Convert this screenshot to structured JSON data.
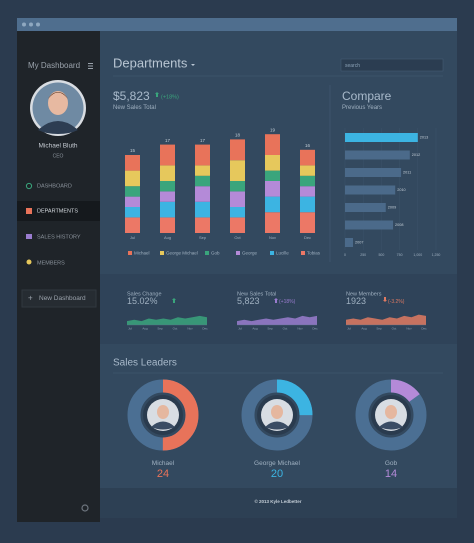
{
  "sidebar": {
    "title": "My Dashboard",
    "user": {
      "name": "Michael Bluth",
      "role": "CEO"
    },
    "menu": [
      "DASHBOARD",
      "DEPARTMENTS",
      "SALES HISTORY",
      "MEMBERS"
    ],
    "new_dashboard": "New Dashboard"
  },
  "header": {
    "title": "Departments",
    "search_placeholder": "search"
  },
  "sales": {
    "amount": "$5,823",
    "change": "(+18%)",
    "label": "New Sales Total"
  },
  "department_chart": {
    "type": "bar",
    "stacked": true,
    "categories": [
      "Jul",
      "Aug",
      "Sep",
      "Oct",
      "Nov",
      "Dec"
    ],
    "totals": [
      15,
      17,
      17,
      18,
      19,
      16
    ],
    "ylim": [
      0,
      20
    ],
    "series": [
      {
        "name": "Michael",
        "color": "#e8735a",
        "values": [
          3,
          4,
          4,
          4,
          4,
          3
        ]
      },
      {
        "name": "George Michael",
        "color": "#e6c85c",
        "values": [
          3,
          3,
          2,
          4,
          3,
          2
        ]
      },
      {
        "name": "Gob",
        "color": "#3aa57c",
        "values": [
          2,
          2,
          2,
          2,
          2,
          2
        ]
      },
      {
        "name": "George",
        "color": "#b48ad8",
        "values": [
          2,
          2,
          3,
          3,
          3,
          2
        ]
      },
      {
        "name": "Lucille",
        "color": "#3cb4e2",
        "values": [
          2,
          3,
          3,
          2,
          3,
          3
        ]
      },
      {
        "name": "Tobias",
        "color": "#ec7866",
        "values": [
          3,
          3,
          3,
          3,
          4,
          4
        ]
      }
    ]
  },
  "compare_chart": {
    "type": "bar",
    "orientation": "horizontal",
    "title": "Compare",
    "subtitle": "Previous Years",
    "categories": [
      "2013",
      "2012",
      "2011",
      "2010",
      "2009",
      "2008",
      "2007"
    ],
    "values": [
      1000,
      890,
      770,
      690,
      560,
      660,
      110
    ],
    "colors": [
      "#3cb4e2",
      "#4b6a8a",
      "#4b6a8a",
      "#4b6a8a",
      "#4b6a8a",
      "#4b6a8a",
      "#4b6a8a"
    ],
    "xlim": [
      0,
      1250
    ],
    "xticks": [
      0,
      250,
      500,
      750,
      {
        "value": 1000,
        "label": "1,000"
      },
      {
        "value": 1250,
        "label": "1,250"
      }
    ]
  },
  "kpis": [
    {
      "label": "Sales Change",
      "value": "15.02%",
      "change": "",
      "color": "#3aa57c",
      "months": [
        "Jul",
        "Aug",
        "Sep",
        "Oct",
        "Nov",
        "Dec"
      ],
      "ylim": [
        0,
        10
      ],
      "values": [
        3,
        4,
        3,
        5,
        4,
        5,
        4,
        6,
        5,
        6,
        7,
        6
      ]
    },
    {
      "label": "New Sales Total",
      "value": "5,823",
      "change": "(+18%)",
      "color": "#9a7ccf",
      "months": [
        "Jul",
        "Aug",
        "Sep",
        "Oct",
        "Nov",
        "Dec"
      ],
      "ylim": [
        0,
        10
      ],
      "values": [
        3,
        4,
        3,
        4,
        5,
        4,
        5,
        6,
        5,
        7,
        6,
        7
      ]
    },
    {
      "label": "New Members",
      "value": "1923",
      "change": "(-3.2%)",
      "color": "#e07a62",
      "months": [
        "Jul",
        "Aug",
        "Sep",
        "Oct",
        "Nov",
        "Dec"
      ],
      "ylim": [
        0,
        10
      ],
      "values": [
        4,
        5,
        4,
        6,
        5,
        4,
        6,
        5,
        7,
        6,
        8,
        7
      ]
    }
  ],
  "leaders": {
    "title": "Sales Leaders",
    "people": [
      {
        "name": "Michael",
        "value": 24,
        "share": 50,
        "color": "#e8735a"
      },
      {
        "name": "George Michael",
        "value": 20,
        "share": 25,
        "color": "#3cb4e2"
      },
      {
        "name": "Gob",
        "value": 14,
        "share": 15,
        "color": "#b48ad8"
      }
    ]
  },
  "footer": "© 2013 Kyle Ledbetter"
}
